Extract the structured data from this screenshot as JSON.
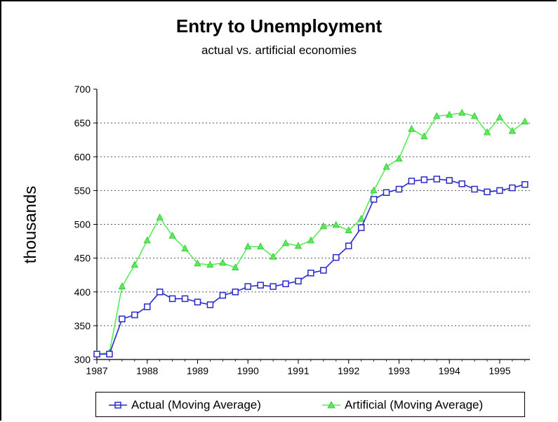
{
  "chart_data": {
    "type": "line",
    "title": "Entry to Unemployment",
    "subtitle": "actual vs. artificial economies",
    "xlabel": "",
    "ylabel": "thousands",
    "ylim": [
      300,
      700
    ],
    "yticks": [
      "300",
      "350",
      "400",
      "450",
      "500",
      "550",
      "600",
      "650",
      "700"
    ],
    "xlim": [
      1987,
      1995.6
    ],
    "xticks": [
      "1987",
      "1988",
      "1989",
      "1990",
      "1991",
      "1992",
      "1993",
      "1994",
      "1995"
    ],
    "grid": "horizontal dotted",
    "legend_position": "bottom",
    "x": [
      1987.0,
      1987.25,
      1987.5,
      1987.75,
      1988.0,
      1988.25,
      1988.5,
      1988.75,
      1989.0,
      1989.25,
      1989.5,
      1989.75,
      1990.0,
      1990.25,
      1990.5,
      1990.75,
      1991.0,
      1991.25,
      1991.5,
      1991.75,
      1992.0,
      1992.25,
      1992.5,
      1992.75,
      1993.0,
      1993.25,
      1993.5,
      1993.75,
      1994.0,
      1994.25,
      1994.5,
      1994.75,
      1995.0,
      1995.25,
      1995.5
    ],
    "series": [
      {
        "name": "Actual (Moving Average)",
        "color": "#2a2acc",
        "marker": "square",
        "values": [
          308,
          308,
          360,
          366,
          378,
          400,
          390,
          390,
          385,
          381,
          395,
          400,
          408,
          410,
          408,
          412,
          416,
          428,
          432,
          451,
          468,
          495,
          537,
          547,
          552,
          564,
          566,
          567,
          565,
          560,
          552,
          548,
          550,
          554,
          559
        ]
      },
      {
        "name": "Artificial (Moving Average)",
        "color": "#55ee55",
        "marker": "triangle",
        "values": [
          308,
          310,
          408,
          440,
          476,
          510,
          483,
          464,
          442,
          440,
          443,
          436,
          467,
          467,
          452,
          472,
          468,
          476,
          497,
          499,
          491,
          508,
          550,
          585,
          597,
          641,
          630,
          660,
          662,
          665,
          660,
          636,
          658,
          638,
          652
        ]
      }
    ]
  }
}
